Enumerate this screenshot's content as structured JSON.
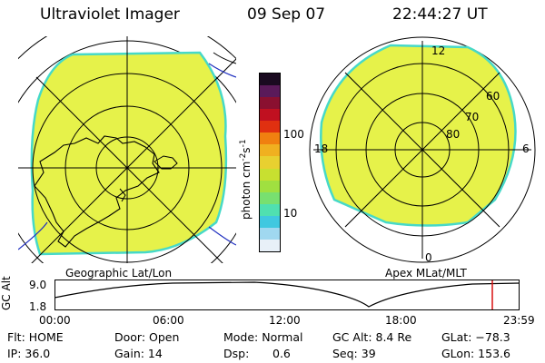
{
  "header": {
    "title": "Ultraviolet Imager",
    "date": "09 Sep 07",
    "time": "22:44:27 UT"
  },
  "left_panel": {
    "label": "Geographic Lat/Lon",
    "fill_color": "#e6f24a",
    "edge_color": "#46d9c8"
  },
  "right_panel": {
    "label": "Apex MLat/MLT",
    "mlt_labels": [
      "12",
      "18",
      "6",
      "0"
    ],
    "lat_labels": [
      "60",
      "70",
      "80"
    ],
    "fill_color": "#e6f24a",
    "edge_color": "#46d9c8"
  },
  "colorbar": {
    "unit_label": "photon cm",
    "unit_exp1": "-2",
    "unit_mid": "s",
    "unit_exp2": "-1",
    "ticks": [
      "100",
      "10"
    ],
    "colors": [
      "#1a0a20",
      "#5a1a5a",
      "#8a1030",
      "#c01020",
      "#e03010",
      "#f08010",
      "#f0b020",
      "#e8d030",
      "#c8e030",
      "#a0e040",
      "#78e070",
      "#50e0b0",
      "#40c8e0",
      "#a0d8f0",
      "#e8f0f8"
    ]
  },
  "altitude_plot": {
    "ylabel": "GC Alt",
    "y_ticks": [
      "9.0",
      "1.8"
    ],
    "x_ticks": [
      "00:00",
      "06:00",
      "12:00",
      "18:00",
      "23:59"
    ],
    "marker_color": "#d81010"
  },
  "info": {
    "flt": "Flt: HOME",
    "ip": "IP: 36.0",
    "door": "Door: Open",
    "gain": "Gain: 14",
    "mode": "Mode: Normal",
    "dsp_label": "Dsp:",
    "dsp_value": "0.6",
    "gc_alt": "GC Alt: 8.4 Re",
    "seq": "Seq: 39",
    "glat": "GLat: −78.3",
    "glon": "GLon: 153.6"
  }
}
